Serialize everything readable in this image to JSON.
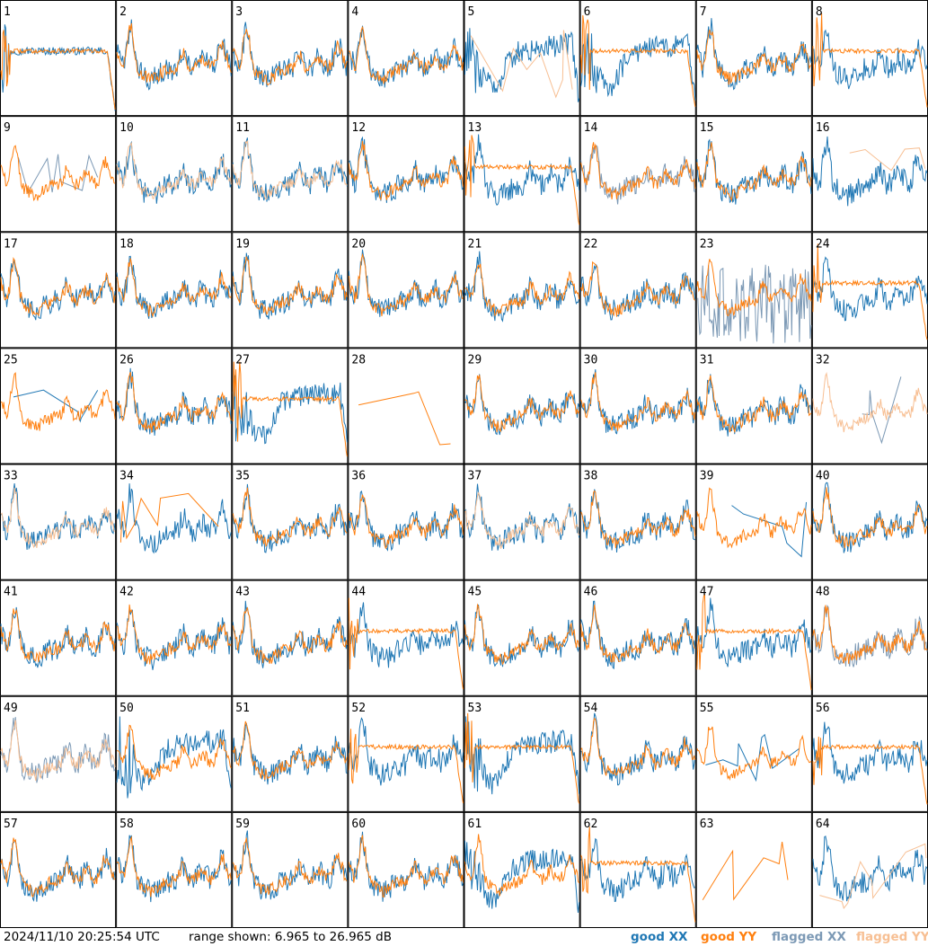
{
  "chart_data": {
    "type": "line",
    "layout": "grid of 64 small-multiple spectra (8 x 8)",
    "timestamp": "2024/11/10 20:25:54 UTC",
    "range_text": "range shown: 6.965 to 26.965 dB",
    "ylim": [
      6.965,
      26.965
    ],
    "grid_rows": 8,
    "grid_cols": 8,
    "legend": [
      {
        "label": "good XX",
        "color": "#1f77b4"
      },
      {
        "label": "good YY",
        "color": "#ff7f0e"
      },
      {
        "label": "flagged XX",
        "color": "#7c99b5"
      },
      {
        "label": "flagged YY",
        "color": "#f7bf93"
      }
    ],
    "panels": [
      {
        "id": "1",
        "xx": "good",
        "yy": "good",
        "xx_profile": "flat",
        "yy_profile": "flat"
      },
      {
        "id": "2",
        "xx": "good",
        "yy": "good",
        "xx_profile": "sky",
        "yy_profile": "sky"
      },
      {
        "id": "3",
        "xx": "good",
        "yy": "good",
        "xx_profile": "sky",
        "yy_profile": "sky"
      },
      {
        "id": "4",
        "xx": "good",
        "yy": "good",
        "xx_profile": "sky",
        "yy_profile": "sky"
      },
      {
        "id": "5",
        "xx": "good",
        "yy": "flagged",
        "xx_profile": "dip",
        "yy_profile": "spikes"
      },
      {
        "id": "6",
        "xx": "good",
        "yy": "good",
        "xx_profile": "dip",
        "yy_profile": "flat"
      },
      {
        "id": "7",
        "xx": "good",
        "yy": "good",
        "xx_profile": "sky",
        "yy_profile": "sky"
      },
      {
        "id": "8",
        "xx": "good",
        "yy": "good",
        "xx_profile": "sky",
        "yy_profile": "flat"
      },
      {
        "id": "9",
        "xx": "flagged",
        "yy": "good",
        "xx_profile": "spikes",
        "yy_profile": "sky"
      },
      {
        "id": "10",
        "xx": "good",
        "yy": "flagged",
        "xx_profile": "sky",
        "yy_profile": "sky"
      },
      {
        "id": "11",
        "xx": "good",
        "yy": "flagged",
        "xx_profile": "sky",
        "yy_profile": "sky"
      },
      {
        "id": "12",
        "xx": "good",
        "yy": "good",
        "xx_profile": "sky",
        "yy_profile": "sky"
      },
      {
        "id": "13",
        "xx": "good",
        "yy": "good",
        "xx_profile": "sky",
        "yy_profile": "flat"
      },
      {
        "id": "14",
        "xx": "flagged",
        "yy": "good",
        "xx_profile": "sky",
        "yy_profile": "sky"
      },
      {
        "id": "15",
        "xx": "good",
        "yy": "good",
        "xx_profile": "sky",
        "yy_profile": "sky"
      },
      {
        "id": "16",
        "xx": "good",
        "yy": "flagged",
        "xx_profile": "sky",
        "yy_profile": "spikes"
      },
      {
        "id": "17",
        "xx": "good",
        "yy": "good",
        "xx_profile": "sky",
        "yy_profile": "sky"
      },
      {
        "id": "18",
        "xx": "good",
        "yy": "good",
        "xx_profile": "sky",
        "yy_profile": "sky"
      },
      {
        "id": "19",
        "xx": "good",
        "yy": "good",
        "xx_profile": "sky",
        "yy_profile": "sky"
      },
      {
        "id": "20",
        "xx": "good",
        "yy": "good",
        "xx_profile": "sky",
        "yy_profile": "sky"
      },
      {
        "id": "21",
        "xx": "good",
        "yy": "good",
        "xx_profile": "sky",
        "yy_profile": "sky"
      },
      {
        "id": "22",
        "xx": "good",
        "yy": "good",
        "xx_profile": "sky",
        "yy_profile": "sky"
      },
      {
        "id": "23",
        "xx": "flagged",
        "yy": "good",
        "xx_profile": "noise",
        "yy_profile": "sky"
      },
      {
        "id": "24",
        "xx": "good",
        "yy": "good",
        "xx_profile": "sky",
        "yy_profile": "flat"
      },
      {
        "id": "25",
        "xx": "good",
        "yy": "good",
        "xx_profile": "spikes",
        "yy_profile": "sky"
      },
      {
        "id": "26",
        "xx": "good",
        "yy": "good",
        "xx_profile": "sky",
        "yy_profile": "sky"
      },
      {
        "id": "27",
        "xx": "good",
        "yy": "good",
        "xx_profile": "dip",
        "yy_profile": "flat"
      },
      {
        "id": "28",
        "xx": "good",
        "yy": "good",
        "xx_profile": "none",
        "yy_profile": "spikes"
      },
      {
        "id": "29",
        "xx": "good",
        "yy": "good",
        "xx_profile": "sky",
        "yy_profile": "sky"
      },
      {
        "id": "30",
        "xx": "good",
        "yy": "good",
        "xx_profile": "sky",
        "yy_profile": "sky"
      },
      {
        "id": "31",
        "xx": "good",
        "yy": "good",
        "xx_profile": "sky",
        "yy_profile": "sky"
      },
      {
        "id": "32",
        "xx": "flagged",
        "yy": "flagged",
        "xx_profile": "spikes",
        "yy_profile": "sky"
      },
      {
        "id": "33",
        "xx": "good",
        "yy": "flagged",
        "xx_profile": "sky",
        "yy_profile": "sky"
      },
      {
        "id": "34",
        "xx": "good",
        "yy": "good",
        "xx_profile": "sky",
        "yy_profile": "spikes"
      },
      {
        "id": "35",
        "xx": "good",
        "yy": "good",
        "xx_profile": "sky",
        "yy_profile": "sky"
      },
      {
        "id": "36",
        "xx": "good",
        "yy": "good",
        "xx_profile": "sky",
        "yy_profile": "sky"
      },
      {
        "id": "37",
        "xx": "good",
        "yy": "flagged",
        "xx_profile": "sky",
        "yy_profile": "sky"
      },
      {
        "id": "38",
        "xx": "good",
        "yy": "good",
        "xx_profile": "sky",
        "yy_profile": "sky"
      },
      {
        "id": "39",
        "xx": "good",
        "yy": "good",
        "xx_profile": "spikes",
        "yy_profile": "sky"
      },
      {
        "id": "40",
        "xx": "good",
        "yy": "good",
        "xx_profile": "sky",
        "yy_profile": "sky"
      },
      {
        "id": "41",
        "xx": "good",
        "yy": "good",
        "xx_profile": "sky",
        "yy_profile": "sky"
      },
      {
        "id": "42",
        "xx": "good",
        "yy": "good",
        "xx_profile": "sky",
        "yy_profile": "sky"
      },
      {
        "id": "43",
        "xx": "good",
        "yy": "good",
        "xx_profile": "sky",
        "yy_profile": "sky"
      },
      {
        "id": "44",
        "xx": "good",
        "yy": "good",
        "xx_profile": "sky",
        "yy_profile": "flat"
      },
      {
        "id": "45",
        "xx": "good",
        "yy": "good",
        "xx_profile": "sky",
        "yy_profile": "sky"
      },
      {
        "id": "46",
        "xx": "good",
        "yy": "good",
        "xx_profile": "sky",
        "yy_profile": "sky"
      },
      {
        "id": "47",
        "xx": "good",
        "yy": "good",
        "xx_profile": "sky",
        "yy_profile": "flat"
      },
      {
        "id": "48",
        "xx": "flagged",
        "yy": "good",
        "xx_profile": "sky",
        "yy_profile": "sky"
      },
      {
        "id": "49",
        "xx": "flagged",
        "yy": "flagged",
        "xx_profile": "sky",
        "yy_profile": "sky"
      },
      {
        "id": "50",
        "xx": "good",
        "yy": "good",
        "xx_profile": "dip",
        "yy_profile": "sky"
      },
      {
        "id": "51",
        "xx": "good",
        "yy": "good",
        "xx_profile": "sky",
        "yy_profile": "sky"
      },
      {
        "id": "52",
        "xx": "good",
        "yy": "good",
        "xx_profile": "sky",
        "yy_profile": "flat"
      },
      {
        "id": "53",
        "xx": "good",
        "yy": "good",
        "xx_profile": "dip",
        "yy_profile": "flat"
      },
      {
        "id": "54",
        "xx": "good",
        "yy": "good",
        "xx_profile": "sky",
        "yy_profile": "sky"
      },
      {
        "id": "55",
        "xx": "good",
        "yy": "good",
        "xx_profile": "spikes",
        "yy_profile": "sky"
      },
      {
        "id": "56",
        "xx": "good",
        "yy": "good",
        "xx_profile": "sky",
        "yy_profile": "flat"
      },
      {
        "id": "57",
        "xx": "good",
        "yy": "good",
        "xx_profile": "sky",
        "yy_profile": "sky"
      },
      {
        "id": "58",
        "xx": "good",
        "yy": "good",
        "xx_profile": "sky",
        "yy_profile": "sky"
      },
      {
        "id": "59",
        "xx": "good",
        "yy": "good",
        "xx_profile": "sky",
        "yy_profile": "sky"
      },
      {
        "id": "60",
        "xx": "good",
        "yy": "good",
        "xx_profile": "sky",
        "yy_profile": "sky"
      },
      {
        "id": "61",
        "xx": "good",
        "yy": "good",
        "xx_profile": "dip",
        "yy_profile": "sky"
      },
      {
        "id": "62",
        "xx": "good",
        "yy": "good",
        "xx_profile": "sky",
        "yy_profile": "flat"
      },
      {
        "id": "63",
        "xx": "good",
        "yy": "good",
        "xx_profile": "none",
        "yy_profile": "spikes"
      },
      {
        "id": "64",
        "xx": "good",
        "yy": "flagged",
        "xx_profile": "sky",
        "yy_profile": "spikes"
      }
    ]
  }
}
